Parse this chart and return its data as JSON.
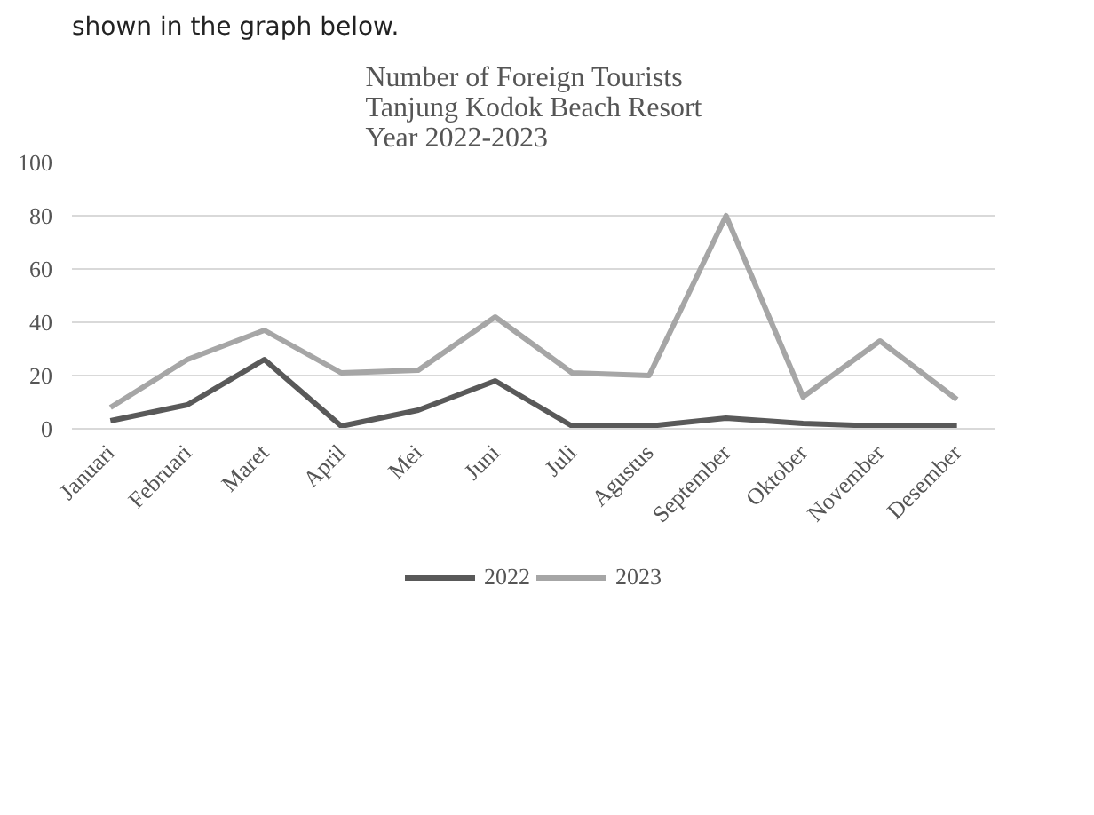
{
  "chart_data": {
    "type": "line",
    "title": "Number of Foreign Tourists\nTanjung Kodok Beach Resort\nYear 2022-2023",
    "annotations": [
      "shown in the graph below."
    ],
    "categories": [
      "Januari",
      "Februari",
      "Maret",
      "April",
      "Mei",
      "Juni",
      "Juli",
      "Agustus",
      "September",
      "Oktober",
      "November",
      "Desember"
    ],
    "series": [
      {
        "name": "2022",
        "color": "#595959",
        "values": [
          3,
          9,
          26,
          1,
          7,
          18,
          1,
          1,
          4,
          2,
          1,
          1
        ]
      },
      {
        "name": "2023",
        "color": "#a6a6a6",
        "values": [
          8,
          26,
          37,
          21,
          22,
          42,
          21,
          20,
          80,
          12,
          33,
          11
        ]
      }
    ],
    "ylim": [
      0,
      100
    ],
    "yticks": [
      0,
      20,
      40,
      60,
      80,
      100
    ],
    "grid": "y",
    "legend": "bottom",
    "line_style": "solid"
  }
}
